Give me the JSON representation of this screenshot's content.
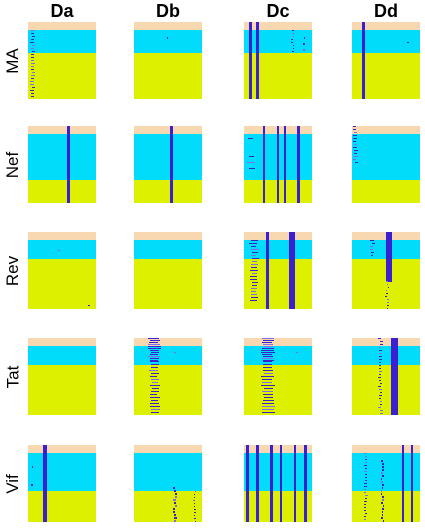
{
  "columns": [
    "Da",
    "Db",
    "Dc",
    "Dd"
  ],
  "rows": [
    "MA",
    "Nef",
    "Rev",
    "Tat",
    "Vif"
  ],
  "colors": {
    "top_band": "#f7d8b0",
    "middle_band": "#00dcfa",
    "bottom_band": "#dcf000",
    "mark": "#3a20d0",
    "mark_light": "#7f6cf0"
  },
  "panels": [
    {
      "row": "MA",
      "col": "Da",
      "bands": [
        0.1,
        0.3,
        0.6
      ],
      "lines": [
        {
          "pos": 0.07,
          "w": 0.06,
          "from": 0.1,
          "to": 1.0,
          "style": "dashed"
        },
        {
          "pos": 0.25,
          "w": 0.02,
          "from": 0.25,
          "to": 0.3,
          "style": "dotted"
        }
      ]
    },
    {
      "row": "MA",
      "col": "Db",
      "bands": [
        0.1,
        0.3,
        0.6
      ],
      "lines": [
        {
          "pos": 0.5,
          "w": 0.02,
          "from": 0.2,
          "to": 0.25,
          "style": "dotted"
        }
      ]
    },
    {
      "row": "MA",
      "col": "Dc",
      "bands": [
        0.1,
        0.3,
        0.6
      ],
      "lines": [
        {
          "pos": 0.1,
          "w": 0.05,
          "from": 0.0,
          "to": 1.0,
          "style": "solid"
        },
        {
          "pos": 0.2,
          "w": 0.05,
          "from": 0.0,
          "to": 1.0,
          "style": "solid"
        },
        {
          "pos": 0.72,
          "w": 0.03,
          "from": 0.1,
          "to": 0.4,
          "style": "dashed"
        },
        {
          "pos": 0.88,
          "w": 0.03,
          "from": 0.2,
          "to": 0.45,
          "style": "dotted"
        }
      ]
    },
    {
      "row": "MA",
      "col": "Dd",
      "bands": [
        0.1,
        0.3,
        0.6
      ],
      "lines": [
        {
          "pos": 0.17,
          "w": 0.05,
          "from": 0.0,
          "to": 1.0,
          "style": "solid"
        },
        {
          "pos": 0.83,
          "w": 0.04,
          "from": 0.1,
          "to": 0.3,
          "style": "dotted"
        },
        {
          "pos": 0.5,
          "w": 0.02,
          "from": 0.85,
          "to": 0.9,
          "style": "dotted"
        }
      ]
    },
    {
      "row": "Nef",
      "col": "Da",
      "bands": [
        0.1,
        0.6,
        0.3
      ],
      "lines": [
        {
          "pos": 0.6,
          "w": 0.05,
          "from": 0.0,
          "to": 1.0,
          "style": "solid"
        }
      ]
    },
    {
      "row": "Nef",
      "col": "Db",
      "bands": [
        0.1,
        0.6,
        0.3
      ],
      "lines": [
        {
          "pos": 0.55,
          "w": 0.05,
          "from": 0.0,
          "to": 1.0,
          "style": "solid"
        }
      ]
    },
    {
      "row": "Nef",
      "col": "Dc",
      "bands": [
        0.1,
        0.6,
        0.3
      ],
      "lines": [
        {
          "pos": 0.3,
          "w": 0.03,
          "from": 0.0,
          "to": 1.0,
          "style": "solid"
        },
        {
          "pos": 0.5,
          "w": 0.04,
          "from": 0.0,
          "to": 1.0,
          "style": "solid"
        },
        {
          "pos": 0.6,
          "w": 0.03,
          "from": 0.0,
          "to": 1.0,
          "style": "solid"
        },
        {
          "pos": 0.8,
          "w": 0.04,
          "from": 0.0,
          "to": 1.0,
          "style": "solid"
        },
        {
          "pos": 0.1,
          "w": 0.12,
          "from": 0.15,
          "to": 0.6,
          "style": "dotted"
        }
      ]
    },
    {
      "row": "Nef",
      "col": "Dd",
      "bands": [
        0.1,
        0.6,
        0.3
      ],
      "lines": [
        {
          "pos": 0.05,
          "w": 0.06,
          "from": 0.0,
          "to": 0.5,
          "style": "dashed"
        }
      ]
    },
    {
      "row": "Rev",
      "col": "Da",
      "bands": [
        0.1,
        0.25,
        0.65
      ],
      "lines": [
        {
          "pos": 0.45,
          "w": 0.03,
          "from": 0.15,
          "to": 0.25,
          "style": "dotted"
        },
        {
          "pos": 0.9,
          "w": 0.03,
          "from": 0.95,
          "to": 0.97,
          "style": "dotted"
        }
      ]
    },
    {
      "row": "Rev",
      "col": "Db",
      "bands": [
        0.1,
        0.25,
        0.65
      ],
      "lines": []
    },
    {
      "row": "Rev",
      "col": "Dc",
      "bands": [
        0.1,
        0.25,
        0.65
      ],
      "lines": [
        {
          "pos": 0.7,
          "w": 0.09,
          "from": 0.0,
          "to": 1.0,
          "style": "solid"
        },
        {
          "pos": 0.35,
          "w": 0.04,
          "from": 0.0,
          "to": 1.0,
          "style": "solid"
        },
        {
          "pos": 0.15,
          "w": 0.12,
          "from": 0.1,
          "to": 0.9,
          "style": "dashed"
        }
      ]
    },
    {
      "row": "Rev",
      "col": "Dd",
      "bands": [
        0.1,
        0.25,
        0.65
      ],
      "lines": [
        {
          "pos": 0.55,
          "w": 0.09,
          "from": 0.0,
          "to": 0.65,
          "style": "solid"
        },
        {
          "pos": 0.3,
          "w": 0.06,
          "from": 0.1,
          "to": 0.3,
          "style": "dashed"
        },
        {
          "pos": 0.52,
          "w": 0.03,
          "from": 0.6,
          "to": 1.0,
          "style": "dashed"
        }
      ]
    },
    {
      "row": "Tat",
      "col": "Da",
      "bands": [
        0.1,
        0.25,
        0.65
      ],
      "lines": []
    },
    {
      "row": "Tat",
      "col": "Db",
      "bands": [
        0.1,
        0.25,
        0.65
      ],
      "lines": [
        {
          "pos": 0.3,
          "w": 0.2,
          "from": 0.0,
          "to": 0.3,
          "style": "dense"
        },
        {
          "pos": 0.3,
          "w": 0.15,
          "from": 0.3,
          "to": 1.0,
          "style": "dashed"
        },
        {
          "pos": 0.6,
          "w": 0.04,
          "from": 0.1,
          "to": 0.2,
          "style": "dotted"
        }
      ]
    },
    {
      "row": "Tat",
      "col": "Dc",
      "bands": [
        0.1,
        0.25,
        0.65
      ],
      "lines": [
        {
          "pos": 0.35,
          "w": 0.2,
          "from": 0.0,
          "to": 0.3,
          "style": "dense"
        },
        {
          "pos": 0.35,
          "w": 0.2,
          "from": 0.3,
          "to": 1.0,
          "style": "dashed"
        },
        {
          "pos": 0.78,
          "w": 0.06,
          "from": 0.1,
          "to": 0.3,
          "style": "dotted"
        }
      ]
    },
    {
      "row": "Tat",
      "col": "Dd",
      "bands": [
        0.1,
        0.25,
        0.65
      ],
      "lines": [
        {
          "pos": 0.62,
          "w": 0.1,
          "from": 0.0,
          "to": 1.0,
          "style": "solid"
        },
        {
          "pos": 0.42,
          "w": 0.05,
          "from": 0.0,
          "to": 1.0,
          "style": "dashed"
        }
      ]
    },
    {
      "row": "Vif",
      "col": "Da",
      "bands": [
        0.1,
        0.5,
        0.4
      ],
      "lines": [
        {
          "pos": 0.25,
          "w": 0.05,
          "from": 0.0,
          "to": 1.0,
          "style": "solid"
        },
        {
          "pos": 0.05,
          "w": 0.03,
          "from": 0.2,
          "to": 0.6,
          "style": "dotted"
        }
      ]
    },
    {
      "row": "Vif",
      "col": "Db",
      "bands": [
        0.1,
        0.5,
        0.4
      ],
      "lines": [
        {
          "pos": 0.6,
          "w": 0.04,
          "from": 0.55,
          "to": 1.0,
          "style": "dashed"
        },
        {
          "pos": 0.9,
          "w": 0.03,
          "from": 0.6,
          "to": 1.0,
          "style": "dashed"
        }
      ]
    },
    {
      "row": "Vif",
      "col": "Dc",
      "bands": [
        0.1,
        0.5,
        0.4
      ],
      "lines": [
        {
          "pos": 0.05,
          "w": 0.05,
          "from": 0.0,
          "to": 1.0,
          "style": "solid"
        },
        {
          "pos": 0.2,
          "w": 0.04,
          "from": 0.0,
          "to": 1.0,
          "style": "solid"
        },
        {
          "pos": 0.4,
          "w": 0.04,
          "from": 0.0,
          "to": 1.0,
          "style": "solid"
        },
        {
          "pos": 0.55,
          "w": 0.03,
          "from": 0.0,
          "to": 1.0,
          "style": "solid"
        },
        {
          "pos": 0.75,
          "w": 0.04,
          "from": 0.0,
          "to": 1.0,
          "style": "solid"
        },
        {
          "pos": 0.9,
          "w": 0.04,
          "from": 0.0,
          "to": 1.0,
          "style": "solid"
        }
      ]
    },
    {
      "row": "Vif",
      "col": "Dd",
      "bands": [
        0.1,
        0.5,
        0.4
      ],
      "lines": [
        {
          "pos": 0.2,
          "w": 0.04,
          "from": 0.1,
          "to": 1.0,
          "style": "dashed"
        },
        {
          "pos": 0.45,
          "w": 0.03,
          "from": 0.2,
          "to": 1.0,
          "style": "dashed"
        },
        {
          "pos": 0.75,
          "w": 0.03,
          "from": 0.0,
          "to": 1.0,
          "style": "solid"
        },
        {
          "pos": 0.88,
          "w": 0.03,
          "from": 0.0,
          "to": 1.0,
          "style": "solid"
        }
      ]
    }
  ]
}
